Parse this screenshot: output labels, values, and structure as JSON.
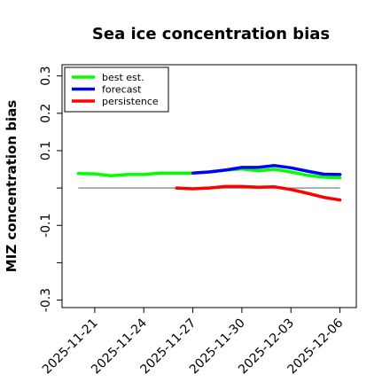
{
  "chart_data": {
    "type": "line",
    "title": "Sea ice concentration bias",
    "ylabel": "MIZ concentration bias",
    "xlabel": "",
    "ylim": [
      -0.32,
      0.33
    ],
    "xlim": [
      "2025-11-19",
      "2025-12-07"
    ],
    "yticks": [
      {
        "value": 0.3,
        "label": "0.3"
      },
      {
        "value": 0.2,
        "label": "0.2"
      },
      {
        "value": 0.1,
        "label": "0.1"
      },
      {
        "value": 0.0,
        "label": ""
      },
      {
        "value": -0.1,
        "label": "-0.1"
      },
      {
        "value": -0.2,
        "label": ""
      },
      {
        "value": -0.3,
        "label": "-0.3"
      }
    ],
    "xticks": [
      {
        "date": "2025-11-21",
        "label": "2025-11-21",
        "color": "#000000"
      },
      {
        "date": "2025-11-24",
        "label": "2025-11-24",
        "color": "#000000"
      },
      {
        "date": "2025-11-27",
        "label": "2025-11-27",
        "color": "#228b22"
      },
      {
        "date": "2025-11-30",
        "label": "2025-11-30",
        "color": "#000000"
      },
      {
        "date": "2025-12-03",
        "label": "2025-12-03",
        "color": "#000000"
      },
      {
        "date": "2025-12-06",
        "label": "2025-12-06",
        "color": "#000000"
      }
    ],
    "grid": false,
    "legend_position": "top-left",
    "zero_line": {
      "color": "#808080",
      "from": "2025-11-20",
      "to": "2025-12-06"
    },
    "series": [
      {
        "name": "best est.",
        "color": "#00ff00",
        "x": [
          "2025-11-20",
          "2025-11-21",
          "2025-11-22",
          "2025-11-23",
          "2025-11-24",
          "2025-11-25",
          "2025-11-26",
          "2025-11-27",
          "2025-11-28",
          "2025-11-29",
          "2025-11-30",
          "2025-12-01",
          "2025-12-02",
          "2025-12-03",
          "2025-12-04",
          "2025-12-05",
          "2025-12-06"
        ],
        "y": [
          0.039,
          0.038,
          0.033,
          0.036,
          0.036,
          0.04,
          0.04,
          0.04,
          0.043,
          0.048,
          0.051,
          0.046,
          0.05,
          0.043,
          0.034,
          0.029,
          0.027
        ]
      },
      {
        "name": "forecast",
        "color": "#0000ff",
        "x": [
          "2025-11-27",
          "2025-11-28",
          "2025-11-29",
          "2025-11-30",
          "2025-12-01",
          "2025-12-02",
          "2025-12-03",
          "2025-12-04",
          "2025-12-05",
          "2025-12-06"
        ],
        "y": [
          0.04,
          0.043,
          0.048,
          0.055,
          0.055,
          0.06,
          0.054,
          0.045,
          0.037,
          0.036
        ]
      },
      {
        "name": "persistence",
        "color": "#ff0000",
        "x": [
          "2025-11-26",
          "2025-11-27",
          "2025-11-28",
          "2025-11-29",
          "2025-11-30",
          "2025-12-01",
          "2025-12-02",
          "2025-12-03",
          "2025-12-04",
          "2025-12-05",
          "2025-12-06"
        ],
        "y": [
          0.0,
          -0.002,
          0.0,
          0.004,
          0.004,
          0.002,
          0.003,
          -0.004,
          -0.014,
          -0.025,
          -0.032
        ]
      }
    ]
  }
}
